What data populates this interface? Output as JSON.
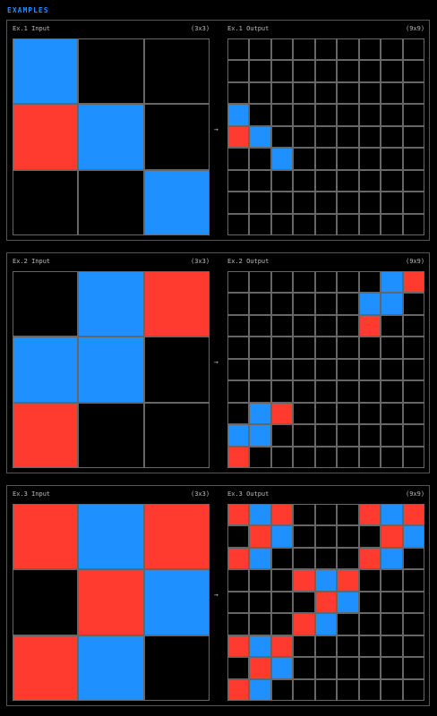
{
  "heading": "EXAMPLES",
  "arrow": "→",
  "colors": {
    "0": "#000000",
    "1": "#1e90ff",
    "2": "#ff3b30",
    "grid_line": "#666666"
  },
  "examples": [
    {
      "input_label": "Ex.1 Input",
      "input_size": "(3x3)",
      "output_label": "Ex.1 Output",
      "output_size": "(9x9)",
      "input": [
        [
          1,
          0,
          0
        ],
        [
          2,
          1,
          0
        ],
        [
          0,
          0,
          1
        ]
      ],
      "output": [
        [
          0,
          0,
          0,
          0,
          0,
          0,
          0,
          0,
          0
        ],
        [
          0,
          0,
          0,
          0,
          0,
          0,
          0,
          0,
          0
        ],
        [
          0,
          0,
          0,
          0,
          0,
          0,
          0,
          0,
          0
        ],
        [
          1,
          0,
          0,
          0,
          0,
          0,
          0,
          0,
          0
        ],
        [
          2,
          1,
          0,
          0,
          0,
          0,
          0,
          0,
          0
        ],
        [
          0,
          0,
          1,
          0,
          0,
          0,
          0,
          0,
          0
        ],
        [
          0,
          0,
          0,
          0,
          0,
          0,
          0,
          0,
          0
        ],
        [
          0,
          0,
          0,
          0,
          0,
          0,
          0,
          0,
          0
        ],
        [
          0,
          0,
          0,
          0,
          0,
          0,
          0,
          0,
          0
        ]
      ]
    },
    {
      "input_label": "Ex.2 Input",
      "input_size": "(3x3)",
      "output_label": "Ex.2 Output",
      "output_size": "(9x9)",
      "input": [
        [
          0,
          1,
          2
        ],
        [
          1,
          1,
          0
        ],
        [
          2,
          0,
          0
        ]
      ],
      "output": [
        [
          0,
          0,
          0,
          0,
          0,
          0,
          0,
          1,
          2
        ],
        [
          0,
          0,
          0,
          0,
          0,
          0,
          1,
          1,
          0
        ],
        [
          0,
          0,
          0,
          0,
          0,
          0,
          2,
          0,
          0
        ],
        [
          0,
          0,
          0,
          0,
          0,
          0,
          0,
          0,
          0
        ],
        [
          0,
          0,
          0,
          0,
          0,
          0,
          0,
          0,
          0
        ],
        [
          0,
          0,
          0,
          0,
          0,
          0,
          0,
          0,
          0
        ],
        [
          0,
          1,
          2,
          0,
          0,
          0,
          0,
          0,
          0
        ],
        [
          1,
          1,
          0,
          0,
          0,
          0,
          0,
          0,
          0
        ],
        [
          2,
          0,
          0,
          0,
          0,
          0,
          0,
          0,
          0
        ]
      ]
    },
    {
      "input_label": "Ex.3 Input",
      "input_size": "(3x3)",
      "output_label": "Ex.3 Output",
      "output_size": "(9x9)",
      "input": [
        [
          2,
          1,
          2
        ],
        [
          0,
          2,
          1
        ],
        [
          2,
          1,
          0
        ]
      ],
      "output": [
        [
          2,
          1,
          2,
          0,
          0,
          0,
          2,
          1,
          2
        ],
        [
          0,
          2,
          1,
          0,
          0,
          0,
          0,
          2,
          1
        ],
        [
          2,
          1,
          0,
          0,
          0,
          0,
          2,
          1,
          0
        ],
        [
          0,
          0,
          0,
          2,
          1,
          2,
          0,
          0,
          0
        ],
        [
          0,
          0,
          0,
          0,
          2,
          1,
          0,
          0,
          0
        ],
        [
          0,
          0,
          0,
          2,
          1,
          0,
          0,
          0,
          0
        ],
        [
          2,
          1,
          2,
          0,
          0,
          0,
          0,
          0,
          0
        ],
        [
          0,
          2,
          1,
          0,
          0,
          0,
          0,
          0,
          0
        ],
        [
          2,
          1,
          0,
          0,
          0,
          0,
          0,
          0,
          0
        ]
      ]
    }
  ]
}
